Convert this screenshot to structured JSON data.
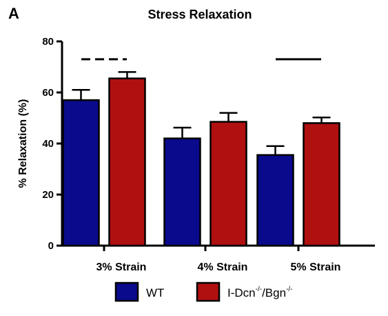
{
  "chart_data": {
    "type": "bar",
    "panel_label": "A",
    "title": "Stress Relaxation",
    "ylabel": "% Relaxation (%)",
    "xlabel": "",
    "ylim": [
      0,
      80
    ],
    "yticks": [
      0,
      20,
      40,
      60,
      80
    ],
    "categories": [
      "3% Strain",
      "4% Strain",
      "5% Strain"
    ],
    "series": [
      {
        "name": "WT",
        "color": "#0a0a8c",
        "values": [
          57,
          42,
          35.5
        ],
        "errors": [
          4,
          4.2,
          3.5
        ]
      },
      {
        "name": "I-Dcn-/-/Bgn-/-",
        "legend_parts": [
          "I-Dcn",
          "-/-",
          "/Bgn",
          "-/-"
        ],
        "color": "#b01010",
        "values": [
          65.5,
          48.5,
          48
        ],
        "errors": [
          2.5,
          3.5,
          2.2
        ]
      }
    ],
    "significance": [
      {
        "category": "3% Strain",
        "style": "dashed",
        "y": 73
      },
      {
        "category": "5% Strain",
        "style": "solid",
        "y": 73
      }
    ],
    "legend_position": "bottom",
    "grid": false
  }
}
